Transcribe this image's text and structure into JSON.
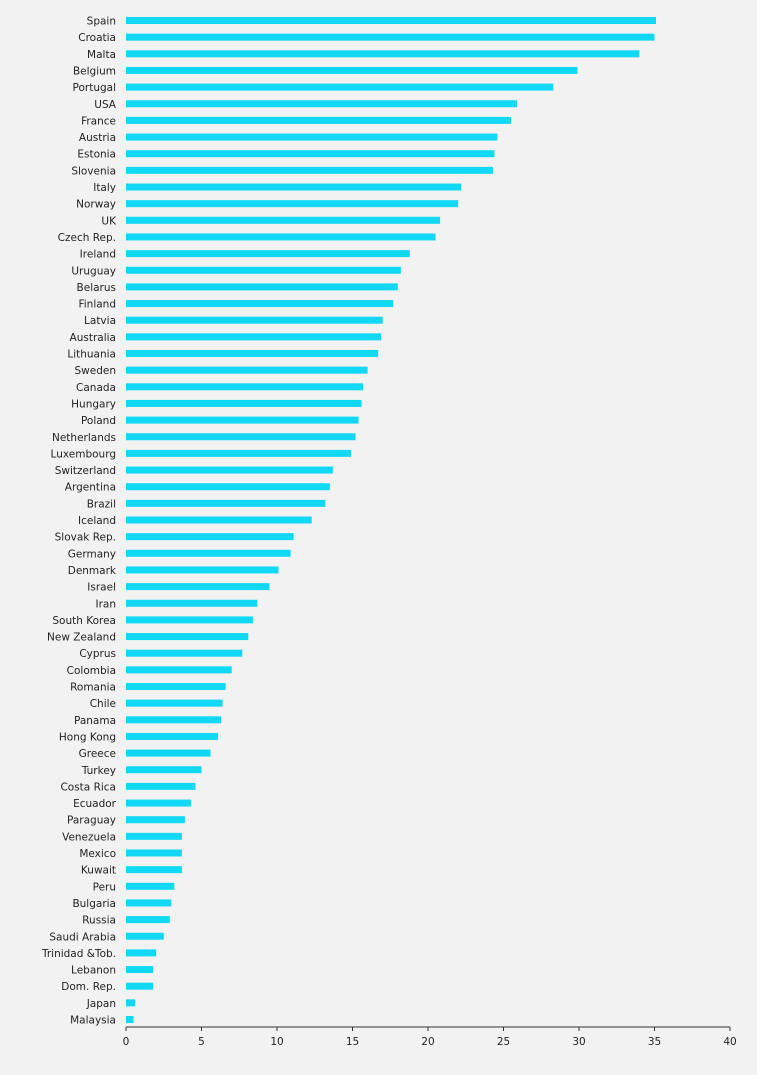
{
  "chart_data": {
    "type": "bar",
    "orientation": "horizontal",
    "title": "",
    "xlabel": "",
    "ylabel": "",
    "xlim": [
      0,
      40
    ],
    "x_ticks": [
      "0",
      "5",
      "10",
      "15",
      "20",
      "25",
      "30",
      "35",
      "40"
    ],
    "grid": false,
    "bar_color": "#11d9f5",
    "categories": [
      "Spain",
      "Croatia",
      "Malta",
      "Belgium",
      "Portugal",
      "USA",
      "France",
      "Austria",
      "Estonia",
      "Slovenia",
      "Italy",
      "Norway",
      "UK",
      "Czech Rep.",
      "Ireland",
      "Uruguay",
      "Belarus",
      "Finland",
      "Latvia",
      "Australia",
      "Lithuania",
      "Sweden",
      "Canada",
      "Hungary",
      "Poland",
      "Netherlands",
      "Luxembourg",
      "Switzerland",
      "Argentina",
      "Brazil",
      "Iceland",
      "Slovak Rep.",
      "Germany",
      "Denmark",
      "Israel",
      "Iran",
      "South Korea",
      "New Zealand",
      "Cyprus",
      "Colombia",
      "Romania",
      "Chile",
      "Panama",
      "Hong Kong",
      "Greece",
      "Turkey",
      "Costa Rica",
      "Ecuador",
      "Paraguay",
      "Venezuela",
      "Mexico",
      "Kuwait",
      "Peru",
      "Bulgaria",
      "Russia",
      "Saudi Arabia",
      "Trinidad &Tob.",
      "Lebanon",
      "Dom. Rep.",
      "Japan",
      "Malaysia"
    ],
    "values": [
      35.1,
      35.0,
      34.0,
      29.9,
      28.3,
      25.9,
      25.5,
      24.6,
      24.4,
      24.3,
      22.2,
      22.0,
      20.8,
      20.5,
      18.8,
      18.2,
      18.0,
      17.7,
      17.0,
      16.9,
      16.7,
      16.0,
      15.7,
      15.6,
      15.4,
      15.2,
      14.9,
      13.7,
      13.5,
      13.2,
      12.3,
      11.1,
      10.9,
      10.1,
      9.5,
      8.7,
      8.4,
      8.1,
      7.7,
      7.0,
      6.6,
      6.4,
      6.3,
      6.1,
      5.6,
      5.0,
      4.6,
      4.3,
      3.9,
      3.7,
      3.7,
      3.7,
      3.2,
      3.0,
      2.9,
      2.5,
      2.0,
      1.8,
      1.8,
      0.6,
      0.5
    ]
  }
}
